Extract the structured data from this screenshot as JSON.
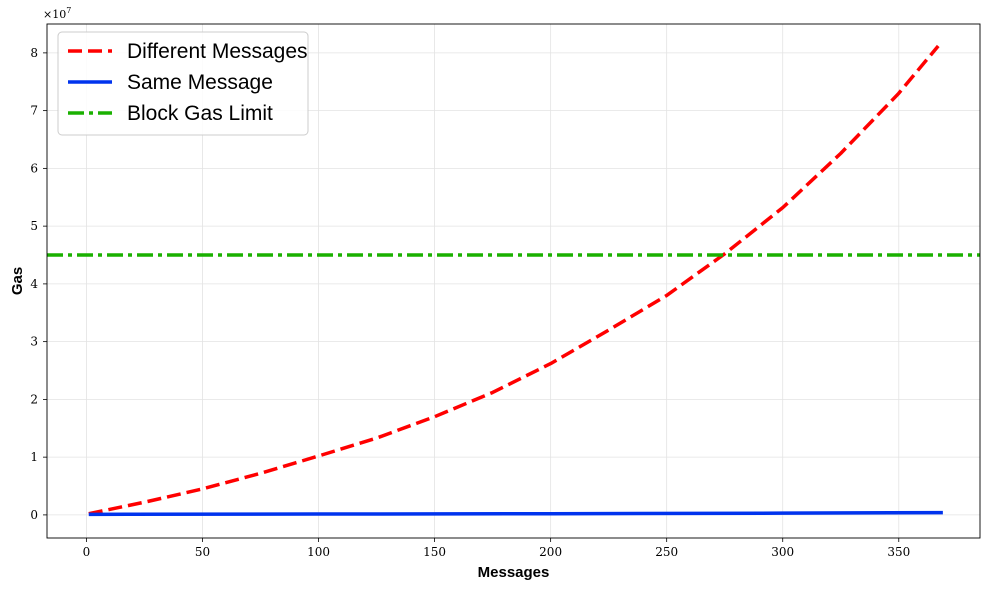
{
  "chart_data": {
    "type": "line",
    "xlabel": "Messages",
    "ylabel": "Gas",
    "y_multiplier": "×10",
    "y_multiplier_exp": "7",
    "xlim": [
      -17,
      385
    ],
    "ylim": [
      -0.4,
      8.5
    ],
    "x_ticks": [
      0,
      50,
      100,
      150,
      200,
      250,
      300,
      350
    ],
    "y_ticks": [
      0,
      1,
      2,
      3,
      4,
      5,
      6,
      7,
      8
    ],
    "grid": true,
    "legend_position": "top-left",
    "series": [
      {
        "name": "Different Messages",
        "color": "#ff0000",
        "style": "dashed",
        "x": [
          1,
          25,
          50,
          75,
          100,
          125,
          150,
          175,
          200,
          225,
          250,
          275,
          300,
          325,
          350,
          367
        ],
        "values": [
          0.02,
          0.22,
          0.45,
          0.72,
          1.02,
          1.33,
          1.7,
          2.12,
          2.62,
          3.2,
          3.8,
          4.52,
          5.32,
          6.26,
          7.3,
          8.12
        ]
      },
      {
        "name": "Same Message",
        "color": "#0033ee",
        "style": "solid",
        "x": [
          1,
          100,
          200,
          300,
          369
        ],
        "values": [
          0.01,
          0.015,
          0.02,
          0.03,
          0.04
        ]
      },
      {
        "name": "Block Gas Limit",
        "color": "#1ab000",
        "style": "dashdot",
        "x": [
          -17,
          385
        ],
        "values": [
          4.5,
          4.5
        ]
      }
    ]
  }
}
